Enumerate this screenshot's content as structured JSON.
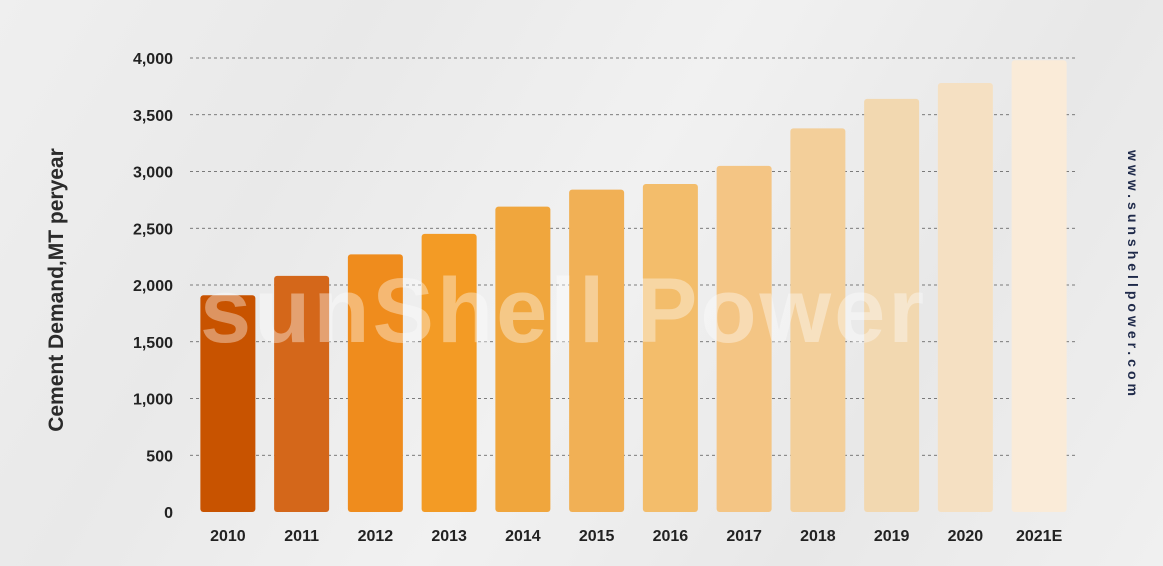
{
  "chart_data": {
    "type": "bar",
    "categories": [
      "2010",
      "2011",
      "2012",
      "2013",
      "2014",
      "2015",
      "2016",
      "2017",
      "2018",
      "2019",
      "2020",
      "2021E"
    ],
    "values": [
      1910,
      2080,
      2270,
      2450,
      2690,
      2840,
      2890,
      3050,
      3380,
      3640,
      3780,
      3980
    ],
    "colors": [
      "#c85300",
      "#d4671a",
      "#ef8c1d",
      "#f39b25",
      "#f0a63d",
      "#f1b055",
      "#f3bd6b",
      "#f4c584",
      "#f3cf9a",
      "#f2d8b0",
      "#f5e0c2",
      "#faebd8"
    ],
    "ylabel": "Cement Demand,MT peryear",
    "xlabel": "",
    "ylim": [
      0,
      4000
    ],
    "yticks": [
      0,
      500,
      1000,
      1500,
      2000,
      2500,
      3000,
      3500,
      4000
    ],
    "ytick_labels": [
      "0",
      "500",
      "1,000",
      "1,500",
      "2,000",
      "2,500",
      "3,000",
      "3,500",
      "4,000"
    ],
    "grid": true,
    "grid_style": "dashed",
    "legend": "none"
  },
  "branding": {
    "watermark": "sunShell Power",
    "side_url": "www.sunshellpower.com"
  }
}
